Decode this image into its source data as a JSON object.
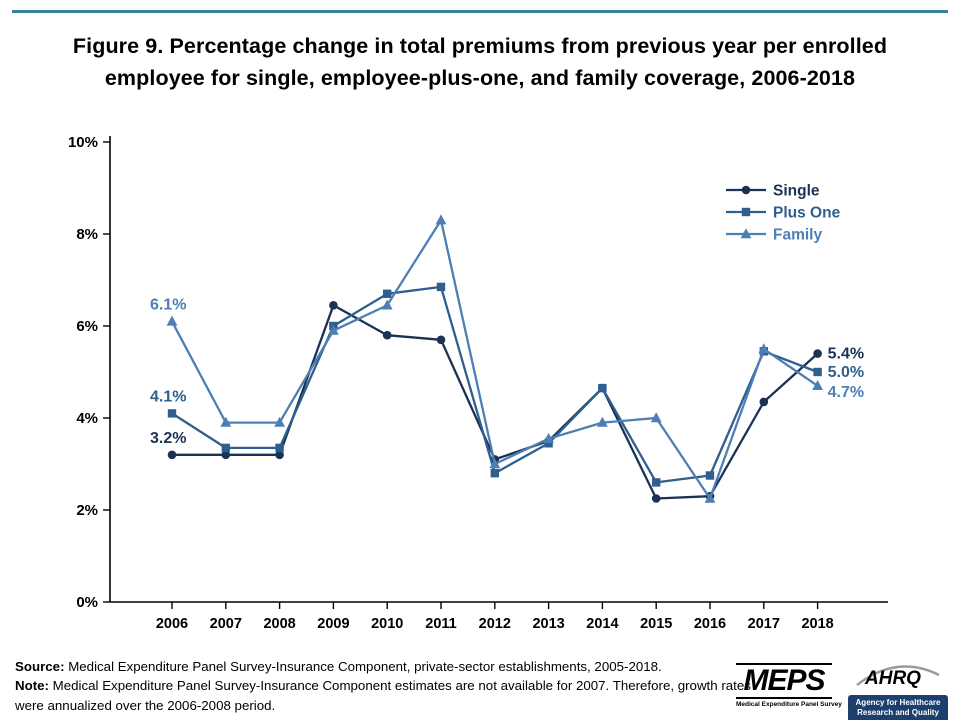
{
  "page": {
    "title": "Figure 9. Percentage change in total premiums from previous year per enrolled employee for single, employee-plus-one, and family coverage, 2006-2018"
  },
  "chart_data": {
    "type": "line",
    "title": "Figure 9. Percentage change in total premiums from previous year per enrolled employee for single, employee-plus-one, and family coverage, 2006-2018",
    "categories": [
      "2006",
      "2007",
      "2008",
      "2009",
      "2010",
      "2011",
      "2012",
      "2013",
      "2014",
      "2015",
      "2016",
      "2017",
      "2018"
    ],
    "series": [
      {
        "name": "Single",
        "marker": "circle",
        "color": "#1b3254",
        "values": [
          3.2,
          3.2,
          3.2,
          6.45,
          5.8,
          5.7,
          3.1,
          3.5,
          4.65,
          2.25,
          2.3,
          4.35,
          5.4
        ],
        "first_label": "3.2%",
        "last_label": "5.4%"
      },
      {
        "name": "Plus One",
        "marker": "square",
        "color": "#2f5f8f",
        "values": [
          4.1,
          3.35,
          3.35,
          6.0,
          6.7,
          6.85,
          2.8,
          3.45,
          4.65,
          2.6,
          2.75,
          5.45,
          5.0
        ],
        "first_label": "4.1%",
        "last_label": "5.0%"
      },
      {
        "name": "Family",
        "marker": "triangle",
        "color": "#4d7fb5",
        "values": [
          6.1,
          3.9,
          3.9,
          5.9,
          6.45,
          8.3,
          3.0,
          3.55,
          3.9,
          4.0,
          2.25,
          5.5,
          4.7
        ],
        "first_label": "6.1%",
        "last_label": "4.7%"
      }
    ],
    "ylim": [
      0,
      10
    ],
    "y_ticks": [
      {
        "value": 0,
        "label": "0%"
      },
      {
        "value": 2,
        "label": "2%"
      },
      {
        "value": 4,
        "label": "4%"
      },
      {
        "value": 6,
        "label": "6%"
      },
      {
        "value": 8,
        "label": "8%"
      },
      {
        "value": 10,
        "label": "10%"
      }
    ],
    "grid": false,
    "legend_position": "top-right"
  },
  "footer": {
    "source_label": "Source:",
    "source_text": " Medical Expenditure Panel Survey-Insurance Component, private-sector establishments, 2005-2018.",
    "note_label": "Note:",
    "note_text": " Medical Expenditure Panel Survey-Insurance Component estimates are not available for 2007. Therefore, growth rates were annualized over the 2006-2008 period."
  },
  "logos": {
    "meps_name": "MEPS",
    "meps_tagline": "Medical Expenditure Panel Survey",
    "ahrq_name": "AHRQ",
    "ahrq_tagline": "Agency for Healthcare Research and Quality"
  }
}
